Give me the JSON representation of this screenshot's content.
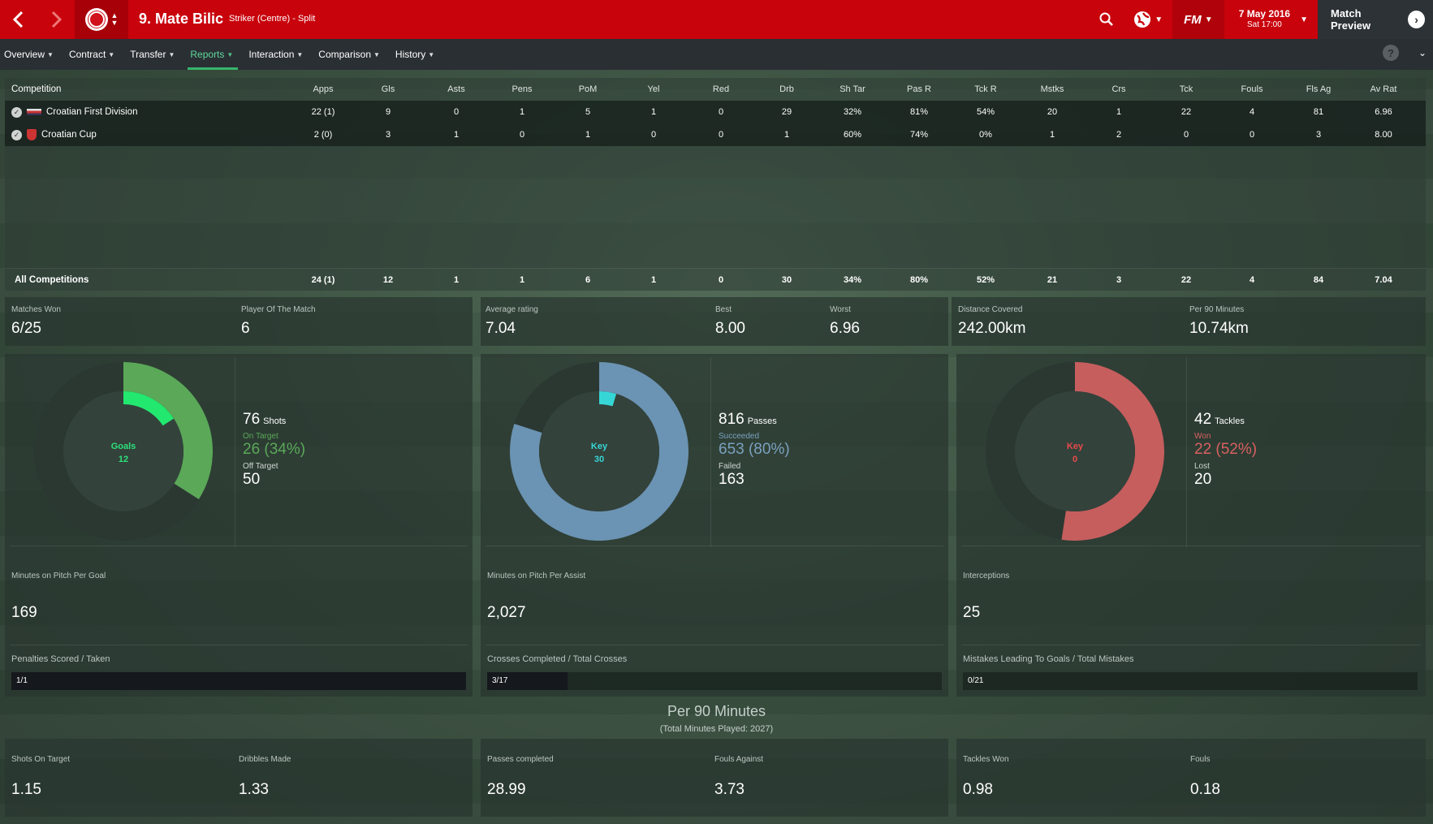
{
  "header": {
    "player_name": "9. Mate Bilic",
    "position": "Striker (Centre) - Split",
    "date": "7 May 2016",
    "time": "Sat 17:00",
    "match_preview": "Match Preview",
    "fm_logo": "FM",
    "brand_color": "#c8030c"
  },
  "tabs": [
    {
      "label": "Overview"
    },
    {
      "label": "Contract"
    },
    {
      "label": "Transfer"
    },
    {
      "label": "Reports",
      "active": true
    },
    {
      "label": "Interaction"
    },
    {
      "label": "Comparison"
    },
    {
      "label": "History"
    }
  ],
  "help": "?",
  "table": {
    "headers": [
      "Competition",
      "Apps",
      "Gls",
      "Asts",
      "Pens",
      "PoM",
      "Yel",
      "Red",
      "Drb",
      "Sh Tar",
      "Pas R",
      "Tck R",
      "Mstks",
      "Crs",
      "Tck",
      "Fouls",
      "Fls Ag",
      "Av Rat"
    ],
    "rows": [
      {
        "name": "Croatian First Division",
        "cells": [
          "22 (1)",
          "9",
          "0",
          "1",
          "5",
          "1",
          "0",
          "29",
          "32%",
          "81%",
          "54%",
          "20",
          "1",
          "22",
          "4",
          "81",
          "6.96"
        ]
      },
      {
        "name": "Croatian Cup",
        "cells": [
          "2 (0)",
          "3",
          "1",
          "0",
          "1",
          "0",
          "0",
          "1",
          "60%",
          "74%",
          "0%",
          "1",
          "2",
          "0",
          "0",
          "3",
          "8.00"
        ]
      }
    ],
    "total": {
      "name": "All Competitions",
      "cells": [
        "24 (1)",
        "12",
        "1",
        "1",
        "6",
        "1",
        "0",
        "30",
        "34%",
        "80%",
        "52%",
        "21",
        "3",
        "22",
        "4",
        "84",
        "7.04"
      ]
    }
  },
  "summary": {
    "matches_won_label": "Matches Won",
    "matches_won": "6/25",
    "potm_label": "Player Of The Match",
    "potm": "6",
    "avg_rating_label": "Average rating",
    "avg_rating": "7.04",
    "best_label": "Best",
    "best": "8.00",
    "worst_label": "Worst",
    "worst": "6.96",
    "distance_label": "Distance Covered",
    "distance": "242.00km",
    "per90_label": "Per 90 Minutes",
    "per90": "10.74km"
  },
  "donuts": {
    "shots": {
      "center_label": "Goals",
      "center_value": "12",
      "total": "76",
      "total_label": "Shots",
      "sub1_label": "On Target",
      "sub1_value": "26 (34%)",
      "sub2_label": "Off Target",
      "sub2_value": "50",
      "outer_fraction": 0.34,
      "inner_fraction": 0.158,
      "outer_color": "#5aa858",
      "inner_color": "#22e870",
      "accent": "#5aa858",
      "center_color": "#2ee07a"
    },
    "passes": {
      "center_label": "Key",
      "center_value": "30",
      "total": "816",
      "total_label": "Passes",
      "sub1_label": "Succeeded",
      "sub1_value": "653 (80%)",
      "sub2_label": "Failed",
      "sub2_value": "163",
      "outer_fraction": 0.8,
      "inner_fraction": 0.046,
      "outer_color": "#6b93b3",
      "inner_color": "#37d6d6",
      "accent": "#7aa1c0",
      "center_color": "#37d6d6"
    },
    "tackles": {
      "center_label": "Key",
      "center_value": "0",
      "total": "42",
      "total_label": "Tackles",
      "sub1_label": "Won",
      "sub1_value": "22 (52%)",
      "sub2_label": "Lost",
      "sub2_value": "20",
      "outer_fraction": 0.524,
      "inner_fraction": 0,
      "outer_color": "#c65e5e",
      "inner_color": "#e84b4b",
      "accent": "#d96060",
      "center_color": "#e84b4b"
    }
  },
  "mid": {
    "per_goal_label": "Minutes on Pitch Per Goal",
    "per_goal": "169",
    "per_assist_label": "Minutes on Pitch Per Assist",
    "per_assist": "2,027",
    "interceptions_label": "Interceptions",
    "interceptions": "25"
  },
  "bars": {
    "pens": {
      "label": "Penalties Scored / Taken",
      "text": "1/1",
      "fraction": 1.0
    },
    "crosses": {
      "label": "Crosses Completed / Total Crosses",
      "text": "3/17",
      "fraction": 0.176
    },
    "mistakes": {
      "label": "Mistakes Leading To Goals / Total Mistakes",
      "text": "0/21",
      "fraction": 0
    }
  },
  "per90": {
    "title": "Per 90 Minutes",
    "subtitle": "(Total Minutes Played: 2027)",
    "shots_on_target_label": "Shots On Target",
    "shots_on_target": "1.15",
    "dribbles_label": "Dribbles Made",
    "dribbles": "1.33",
    "passes_label": "Passes completed",
    "passes": "28.99",
    "fouls_against_label": "Fouls Against",
    "fouls_against": "3.73",
    "tackles_won_label": "Tackles Won",
    "tackles_won": "0.98",
    "fouls_label": "Fouls",
    "fouls": "0.18"
  }
}
